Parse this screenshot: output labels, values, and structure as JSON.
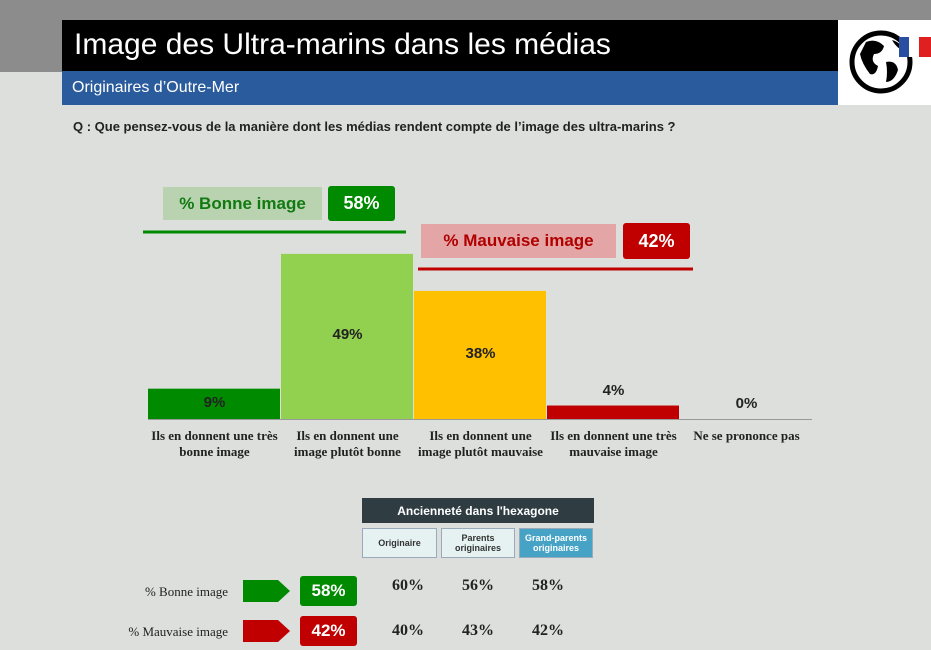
{
  "header": {
    "title": "Image des Ultra-marins dans les médias",
    "subtitle": "Originaires d’Outre-Mer"
  },
  "question": "Q : Que pensez-vous de la manière dont les médias rendent compte de l’image des ultra-marins ?",
  "chart_data": {
    "type": "bar",
    "categories": [
      "Ils en donnent une très bonne image",
      "Ils en donnent une image plutôt bonne",
      "Ils en donnent une image plutôt mauvaise",
      "Ils en donnent une très mauvaise image",
      "Ne se prononce pas"
    ],
    "values": [
      9,
      49,
      38,
      4,
      0
    ],
    "value_labels": [
      "9%",
      "49%",
      "38%",
      "4%",
      "0%"
    ],
    "colors": [
      "#008a00",
      "#92d050",
      "#ffc000",
      "#c00000",
      "#c00000"
    ]
  },
  "table": {
    "title": "Ancienneté dans l'hexagone",
    "columns": [
      "Originaire",
      "Parents originaires",
      "Grand-parents originaires"
    ],
    "rows": [
      {
        "label": "% Bonne image",
        "total": "58%",
        "values": [
          "60%",
          "56%",
          "58%"
        ]
      },
      {
        "label": "% Mauvaise image",
        "total": "42%",
        "values": [
          "40%",
          "43%",
          "42%"
        ]
      }
    ]
  }
}
